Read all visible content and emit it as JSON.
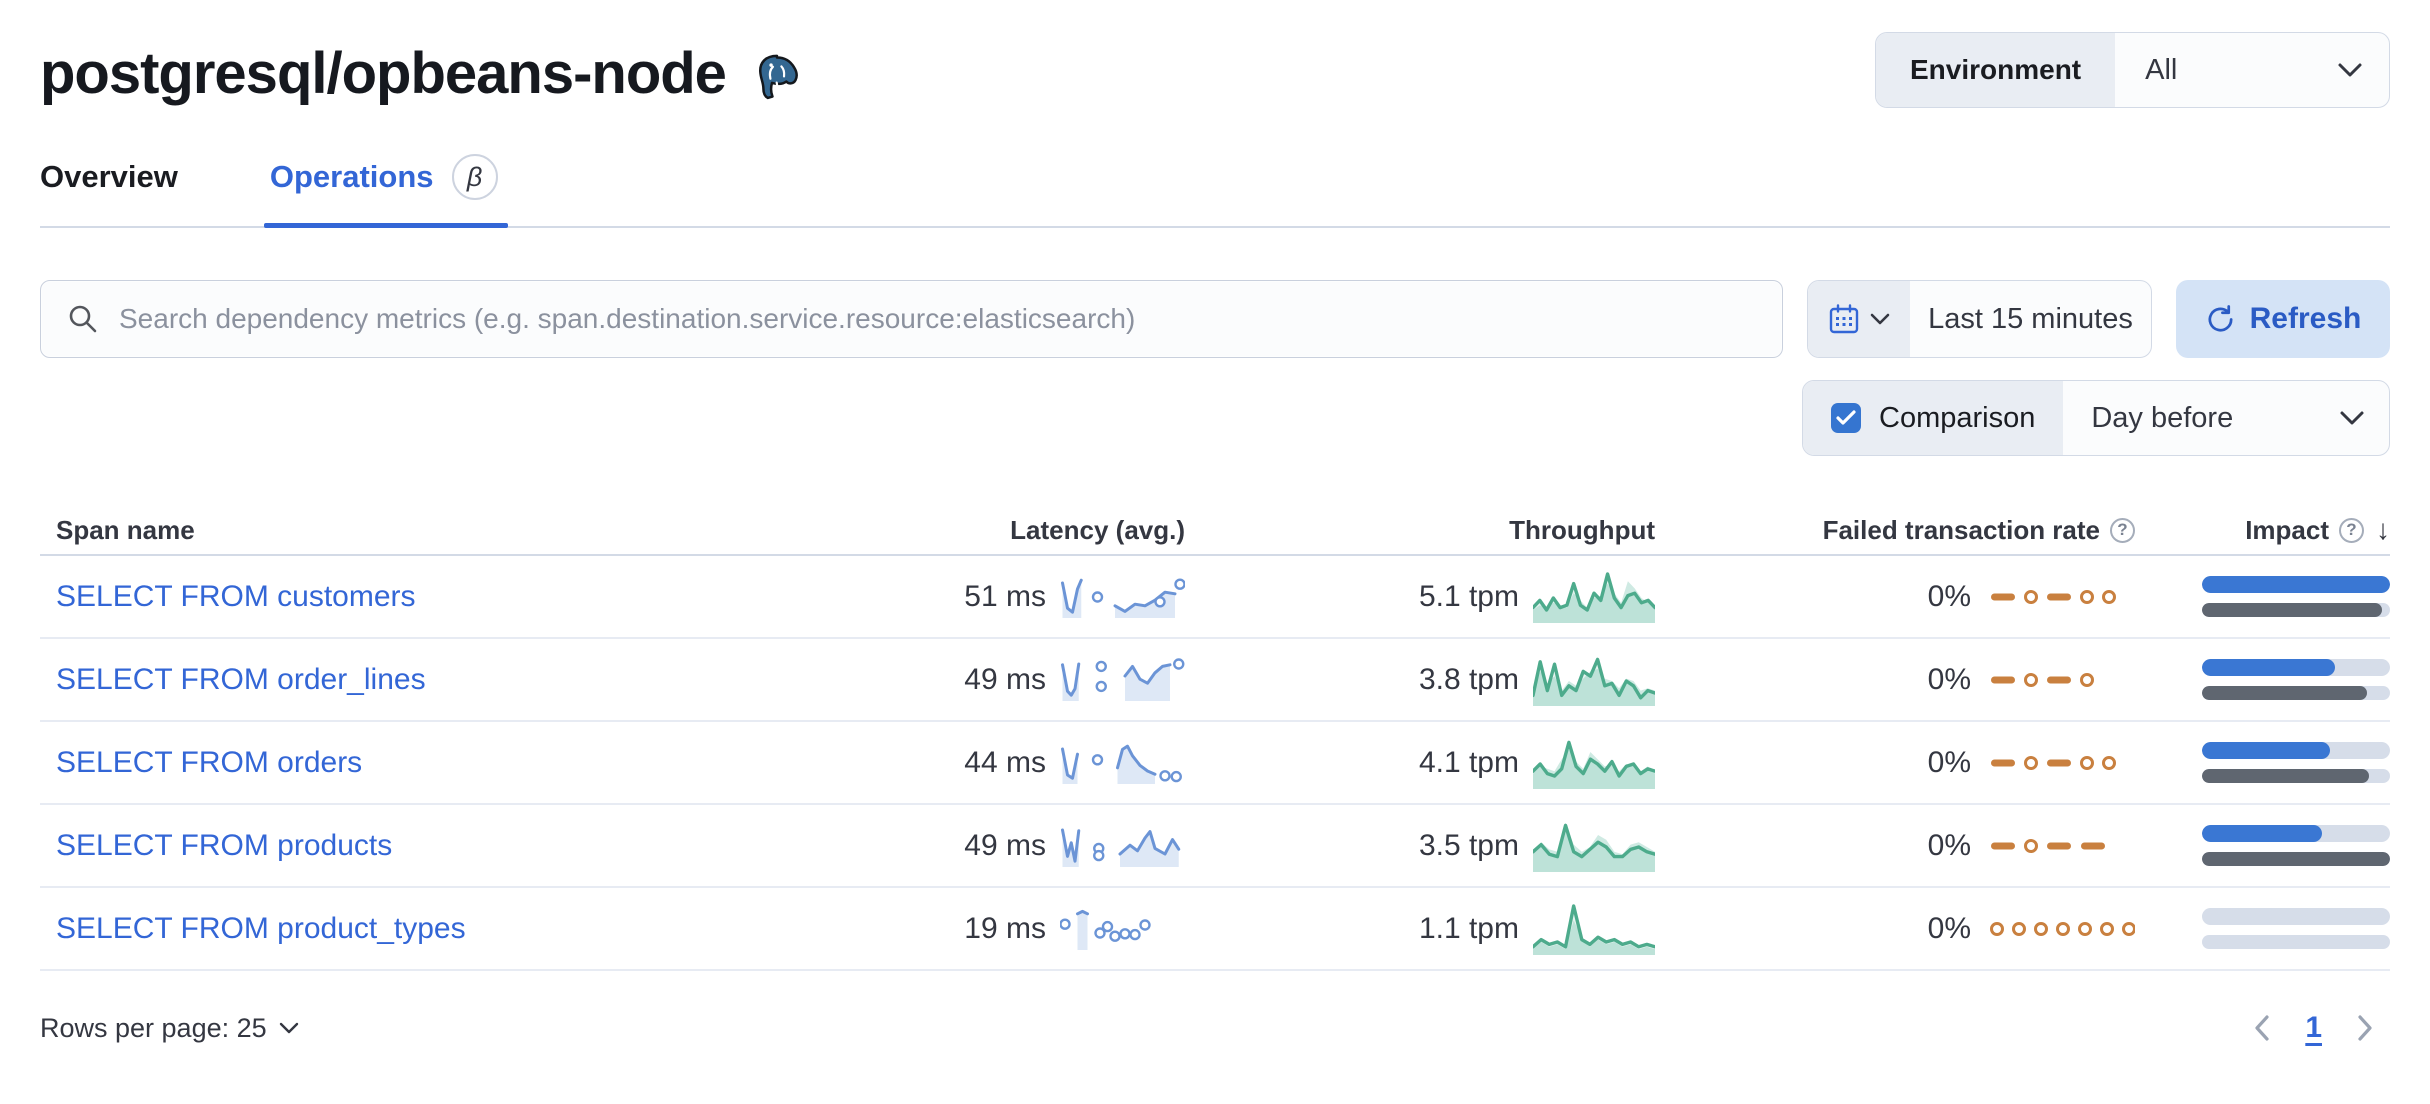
{
  "page": {
    "title": "postgresql/opbeans-node"
  },
  "environment": {
    "label": "Environment",
    "value": "All"
  },
  "tabs": [
    {
      "label": "Overview",
      "active": false
    },
    {
      "label": "Operations",
      "active": true,
      "badge": "β"
    }
  ],
  "search": {
    "placeholder": "Search dependency metrics (e.g. span.destination.service.resource:elasticsearch)"
  },
  "time_picker": {
    "value": "Last 15 minutes"
  },
  "refresh": {
    "label": "Refresh"
  },
  "comparison": {
    "label": "Comparison",
    "checked": true,
    "value": "Day before"
  },
  "colors": {
    "accent_blue": "#3366d6",
    "bar_blue": "#3a77d3",
    "bar_grey": "#5f6670",
    "bar_track": "#d6dde9",
    "green_line": "#4dab8c",
    "orange": "#c9803f",
    "latency_blue": "#6b94d6",
    "refresh_bg": "#d4e3f6"
  },
  "table": {
    "headers": {
      "span_name": "Span name",
      "latency": "Latency (avg.)",
      "throughput": "Throughput",
      "failed_rate": "Failed transaction rate",
      "impact": "Impact"
    },
    "rows": [
      {
        "span_name": "SELECT FROM customers",
        "latency": "51 ms",
        "throughput": "5.1 tpm",
        "failed_rate": "0%",
        "impact_current": 100,
        "impact_previous": 96,
        "latency_spark": {
          "lines": [
            [
              [
                2,
                15
              ],
              [
                6,
                78
              ],
              [
                10,
                88
              ],
              [
                14,
                30
              ],
              [
                17,
                8
              ]
            ],
            [
              [
                44,
                72
              ],
              [
                52,
                86
              ],
              [
                60,
                68
              ],
              [
                68,
                72
              ],
              [
                76,
                58
              ],
              [
                84,
                38
              ],
              [
                92,
                42
              ]
            ]
          ],
          "dots": [
            [
              30,
              50
            ],
            [
              80,
              62
            ],
            [
              96,
              18
            ]
          ]
        },
        "throughput_spark": {
          "current": [
            0.3,
            0.45,
            0.25,
            0.5,
            0.3,
            0.35,
            0.8,
            0.35,
            0.25,
            0.6,
            0.45,
            1.0,
            0.5,
            0.3,
            0.55,
            0.6,
            0.4,
            0.45,
            0.3
          ],
          "previous": [
            0.25,
            0.35,
            0.3,
            0.4,
            0.35,
            0.3,
            0.6,
            0.45,
            0.3,
            0.5,
            0.55,
            0.8,
            0.6,
            0.4,
            0.85,
            0.7,
            0.5,
            0.4,
            0.35
          ]
        },
        "failed_spark": [
          "dash",
          "dot",
          "dash",
          "dot",
          "dot"
        ]
      },
      {
        "span_name": "SELECT FROM order_lines",
        "latency": "49 ms",
        "throughput": "3.8 tpm",
        "failed_rate": "0%",
        "impact_current": 71,
        "impact_previous": 88,
        "latency_spark": {
          "lines": [
            [
              [
                2,
                12
              ],
              [
                6,
                78
              ],
              [
                9,
                88
              ],
              [
                12,
                72
              ],
              [
                15,
                10
              ]
            ],
            [
              [
                52,
                40
              ],
              [
                58,
                16
              ],
              [
                64,
                48
              ],
              [
                70,
                58
              ],
              [
                76,
                32
              ],
              [
                82,
                16
              ],
              [
                88,
                12
              ]
            ]
          ],
          "dots": [
            [
              33,
              16
            ],
            [
              33,
              66
            ],
            [
              95,
              10
            ]
          ]
        },
        "throughput_spark": {
          "current": [
            0.2,
            0.9,
            0.3,
            0.85,
            0.2,
            0.4,
            0.3,
            0.7,
            0.6,
            0.95,
            0.4,
            0.45,
            0.2,
            0.5,
            0.4,
            0.15,
            0.3,
            0.25
          ],
          "previous": [
            0.3,
            0.7,
            0.45,
            0.6,
            0.3,
            0.5,
            0.4,
            0.55,
            0.7,
            0.75,
            0.55,
            0.5,
            0.35,
            0.55,
            0.5,
            0.3,
            0.35,
            0.3
          ]
        },
        "failed_spark": [
          "dash",
          "dot",
          "dash",
          "dot"
        ]
      },
      {
        "span_name": "SELECT FROM orders",
        "latency": "44 ms",
        "throughput": "4.1 tpm",
        "failed_rate": "0%",
        "impact_current": 68,
        "impact_previous": 89,
        "latency_spark": {
          "lines": [
            [
              [
                2,
                15
              ],
              [
                6,
                80
              ],
              [
                10,
                88
              ],
              [
                14,
                28
              ]
            ],
            [
              [
                46,
                62
              ],
              [
                50,
                16
              ],
              [
                54,
                8
              ],
              [
                58,
                32
              ],
              [
                64,
                56
              ],
              [
                70,
                70
              ],
              [
                76,
                78
              ]
            ]
          ],
          "dots": [
            [
              30,
              42
            ],
            [
              84,
              82
            ],
            [
              93,
              84
            ]
          ]
        },
        "throughput_spark": {
          "current": [
            0.35,
            0.5,
            0.3,
            0.25,
            0.4,
            0.95,
            0.45,
            0.3,
            0.6,
            0.5,
            0.35,
            0.55,
            0.25,
            0.45,
            0.5,
            0.3,
            0.4,
            0.35
          ],
          "previous": [
            0.3,
            0.45,
            0.4,
            0.35,
            0.6,
            0.8,
            0.55,
            0.4,
            0.75,
            0.6,
            0.45,
            0.5,
            0.35,
            0.5,
            0.45,
            0.35,
            0.45,
            0.3
          ]
        },
        "failed_spark": [
          "dash",
          "dot",
          "dash",
          "dot",
          "dot"
        ]
      },
      {
        "span_name": "SELECT FROM products",
        "latency": "49 ms",
        "throughput": "3.5 tpm",
        "failed_rate": "0%",
        "impact_current": 64,
        "impact_previous": 100,
        "latency_spark": {
          "lines": [
            [
              [
                2,
                10
              ],
              [
                6,
                76
              ],
              [
                9,
                42
              ],
              [
                12,
                88
              ],
              [
                15,
                12
              ]
            ],
            [
              [
                48,
                70
              ],
              [
                56,
                48
              ],
              [
                62,
                62
              ],
              [
                68,
                30
              ],
              [
                72,
                14
              ],
              [
                76,
                56
              ],
              [
                84,
                70
              ],
              [
                90,
                34
              ],
              [
                95,
                58
              ]
            ]
          ],
          "dots": [
            [
              31,
              56
            ],
            [
              31,
              74
            ]
          ]
        },
        "throughput_spark": {
          "current": [
            0.4,
            0.55,
            0.35,
            0.3,
            0.95,
            0.4,
            0.3,
            0.45,
            0.6,
            0.5,
            0.3,
            0.3,
            0.45,
            0.5,
            0.4,
            0.35
          ],
          "previous": [
            0.35,
            0.6,
            0.45,
            0.4,
            1.0,
            0.55,
            0.4,
            0.5,
            0.75,
            0.65,
            0.4,
            0.35,
            0.55,
            0.6,
            0.5,
            0.4
          ]
        },
        "failed_spark": [
          "dash",
          "dot",
          "dash",
          "dash"
        ]
      },
      {
        "span_name": "SELECT FROM product_types",
        "latency": "19 ms",
        "throughput": "1.1 tpm",
        "failed_rate": "0%",
        "impact_current": 0,
        "impact_previous": 0,
        "latency_spark": {
          "lines": [
            [
              [
                14,
                12
              ],
              [
                18,
                6
              ],
              [
                22,
                12
              ]
            ]
          ],
          "dots": [
            [
              4,
              38
            ],
            [
              32,
              60
            ],
            [
              38,
              44
            ],
            [
              44,
              68
            ],
            [
              52,
              62
            ],
            [
              60,
              64
            ],
            [
              68,
              40
            ]
          ]
        },
        "throughput_spark": {
          "current": [
            0.15,
            0.3,
            0.2,
            0.25,
            0.15,
            1.0,
            0.3,
            0.2,
            0.35,
            0.25,
            0.3,
            0.2,
            0.25,
            0.15,
            0.2,
            0.15
          ],
          "previous": [
            0.1,
            0.25,
            0.15,
            0.2,
            0.1,
            0.7,
            0.35,
            0.15,
            0.3,
            0.2,
            0.25,
            0.15,
            0.2,
            0.1,
            0.15,
            0.1
          ]
        },
        "failed_spark": [
          "dot",
          "dot",
          "dot",
          "dot",
          "dot",
          "dot",
          "dot"
        ]
      }
    ]
  },
  "footer": {
    "rows_per_page": "Rows per page: 25",
    "page": "1"
  }
}
